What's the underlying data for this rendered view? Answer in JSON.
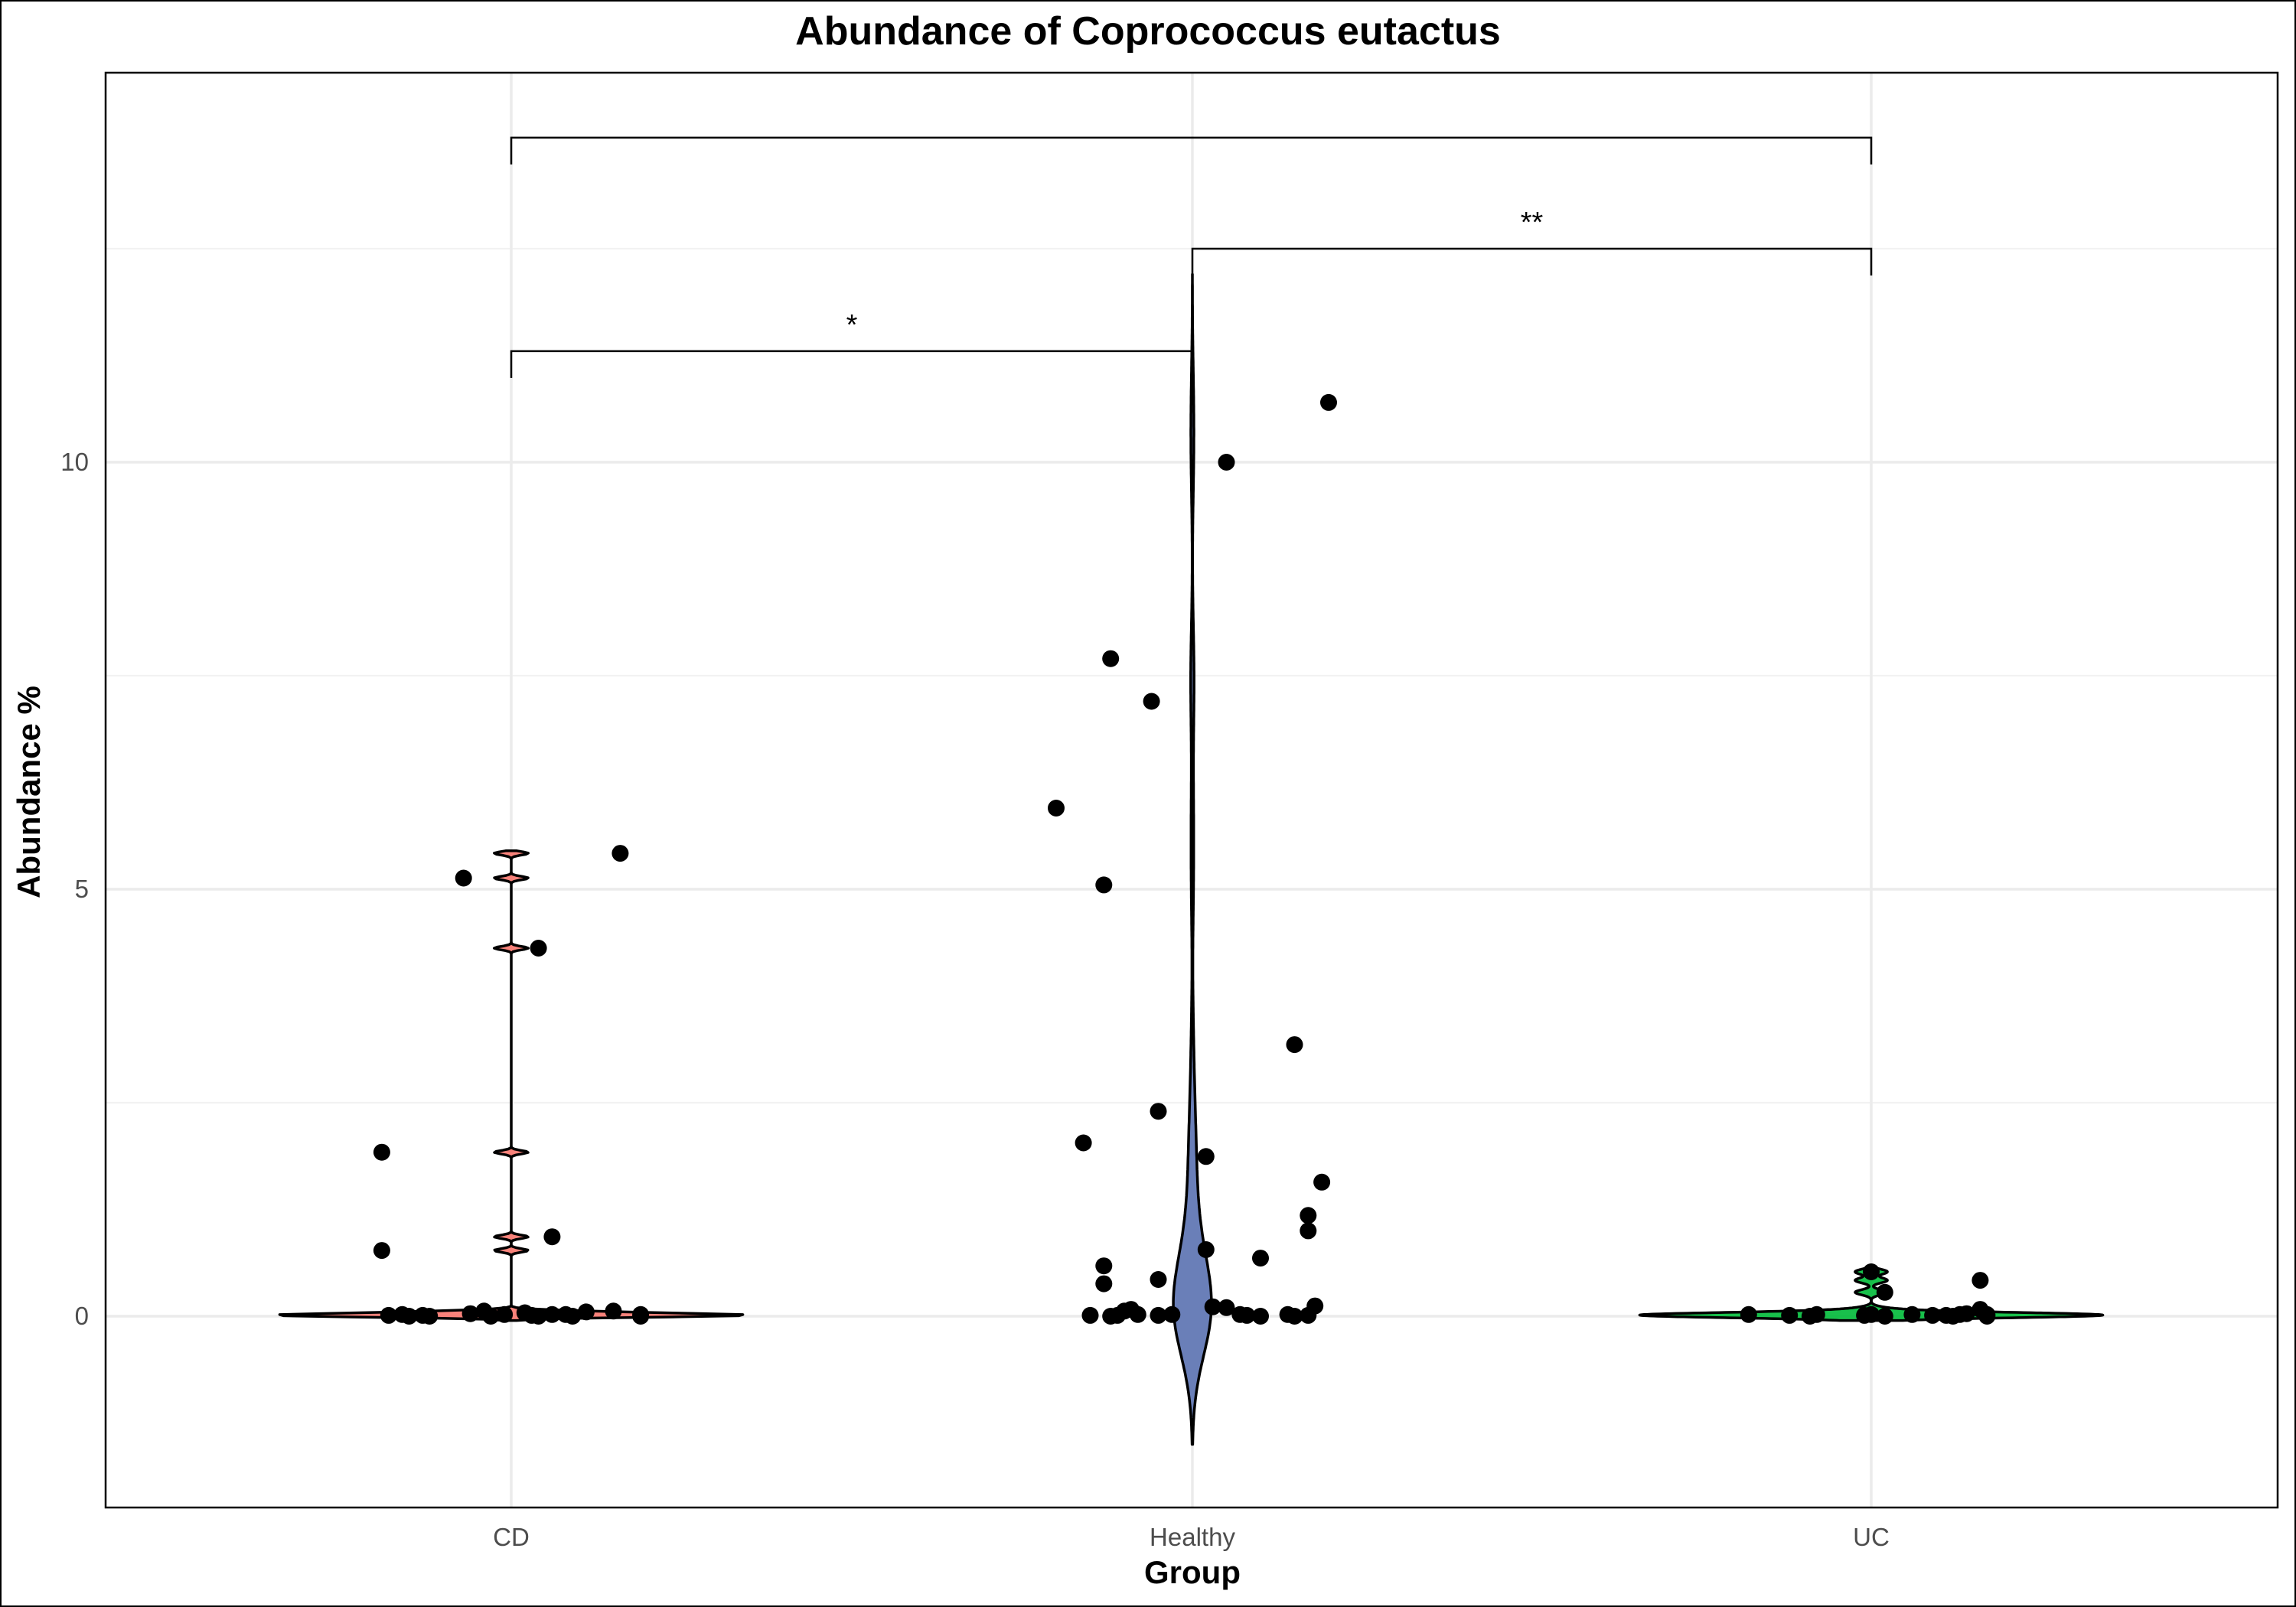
{
  "chart_data": {
    "type": "violin",
    "title": "Abundance of Coprococcus eutactus",
    "xlabel": "Group",
    "ylabel": "Abundance %",
    "categories": [
      "CD",
      "Healthy",
      "UC"
    ],
    "ylim": [
      -2.2,
      14.6
    ],
    "yticks": [
      0,
      5,
      10
    ],
    "grid": true,
    "legend": "none",
    "violin_colors": [
      "#f8766d",
      "#6a7fb8",
      "#00ba38"
    ],
    "point_color": "#000000",
    "series": [
      {
        "category": "CD",
        "points": [
          [
            -0.19,
            1.92
          ],
          [
            -0.19,
            0.77
          ],
          [
            -0.07,
            5.13
          ],
          [
            0.04,
            4.31
          ],
          [
            0.06,
            0.93
          ],
          [
            0.16,
            5.42
          ],
          [
            -0.18,
            0.01
          ],
          [
            -0.16,
            0.02
          ],
          [
            -0.15,
            0.0
          ],
          [
            -0.13,
            0.01
          ],
          [
            -0.12,
            0.0
          ],
          [
            -0.06,
            0.03
          ],
          [
            -0.04,
            0.06
          ],
          [
            -0.03,
            0.0
          ],
          [
            -0.01,
            0.02
          ],
          [
            0.02,
            0.04
          ],
          [
            0.03,
            0.01
          ],
          [
            0.04,
            0.0
          ],
          [
            0.06,
            0.02
          ],
          [
            0.08,
            0.02
          ],
          [
            0.09,
            0.0
          ],
          [
            0.11,
            0.05
          ],
          [
            0.15,
            0.06
          ],
          [
            0.19,
            0.0
          ],
          [
            0.19,
            0.02
          ]
        ]
      },
      {
        "category": "Healthy",
        "points": [
          [
            -0.12,
            7.7
          ],
          [
            -0.06,
            7.2
          ],
          [
            -0.2,
            5.95
          ],
          [
            -0.13,
            5.05
          ],
          [
            0.05,
            10.0
          ],
          [
            0.2,
            10.7
          ],
          [
            0.15,
            3.18
          ],
          [
            -0.05,
            2.4
          ],
          [
            -0.16,
            2.03
          ],
          [
            0.02,
            1.87
          ],
          [
            0.19,
            1.57
          ],
          [
            0.17,
            1.18
          ],
          [
            0.17,
            1.0
          ],
          [
            0.02,
            0.78
          ],
          [
            0.1,
            0.68
          ],
          [
            -0.13,
            0.59
          ],
          [
            -0.13,
            0.38
          ],
          [
            -0.05,
            0.43
          ],
          [
            -0.15,
            0.01
          ],
          [
            -0.12,
            0.0
          ],
          [
            -0.11,
            0.01
          ],
          [
            -0.1,
            0.06
          ],
          [
            -0.09,
            0.08
          ],
          [
            -0.08,
            0.02
          ],
          [
            -0.05,
            0.01
          ],
          [
            -0.03,
            0.02
          ],
          [
            0.03,
            0.11
          ],
          [
            0.05,
            0.1
          ],
          [
            0.07,
            0.02
          ],
          [
            0.08,
            0.01
          ],
          [
            0.1,
            0.0
          ],
          [
            0.14,
            0.02
          ],
          [
            0.15,
            0.0
          ],
          [
            0.17,
            0.01
          ],
          [
            0.18,
            0.12
          ]
        ]
      },
      {
        "category": "UC",
        "points": [
          [
            -0.18,
            0.02
          ],
          [
            -0.12,
            0.01
          ],
          [
            -0.09,
            0.0
          ],
          [
            -0.08,
            0.02
          ],
          [
            0.0,
            0.52
          ],
          [
            0.02,
            0.28
          ],
          [
            0.16,
            0.42
          ],
          [
            -0.01,
            0.01
          ],
          [
            0.0,
            0.02
          ],
          [
            0.02,
            0.0
          ],
          [
            0.06,
            0.02
          ],
          [
            0.09,
            0.01
          ],
          [
            0.11,
            0.01
          ],
          [
            0.12,
            0.0
          ],
          [
            0.13,
            0.02
          ],
          [
            0.14,
            0.03
          ],
          [
            0.16,
            0.08
          ],
          [
            0.17,
            0.02
          ],
          [
            0.17,
            0.0
          ]
        ]
      }
    ],
    "significance": [
      {
        "from": "CD",
        "to": "Healthy",
        "label": "*",
        "y": 11.3
      },
      {
        "from": "Healthy",
        "to": "UC",
        "label": "**",
        "y": 12.5
      },
      {
        "from": "CD",
        "to": "UC",
        "label": "",
        "y": 13.8
      }
    ]
  }
}
